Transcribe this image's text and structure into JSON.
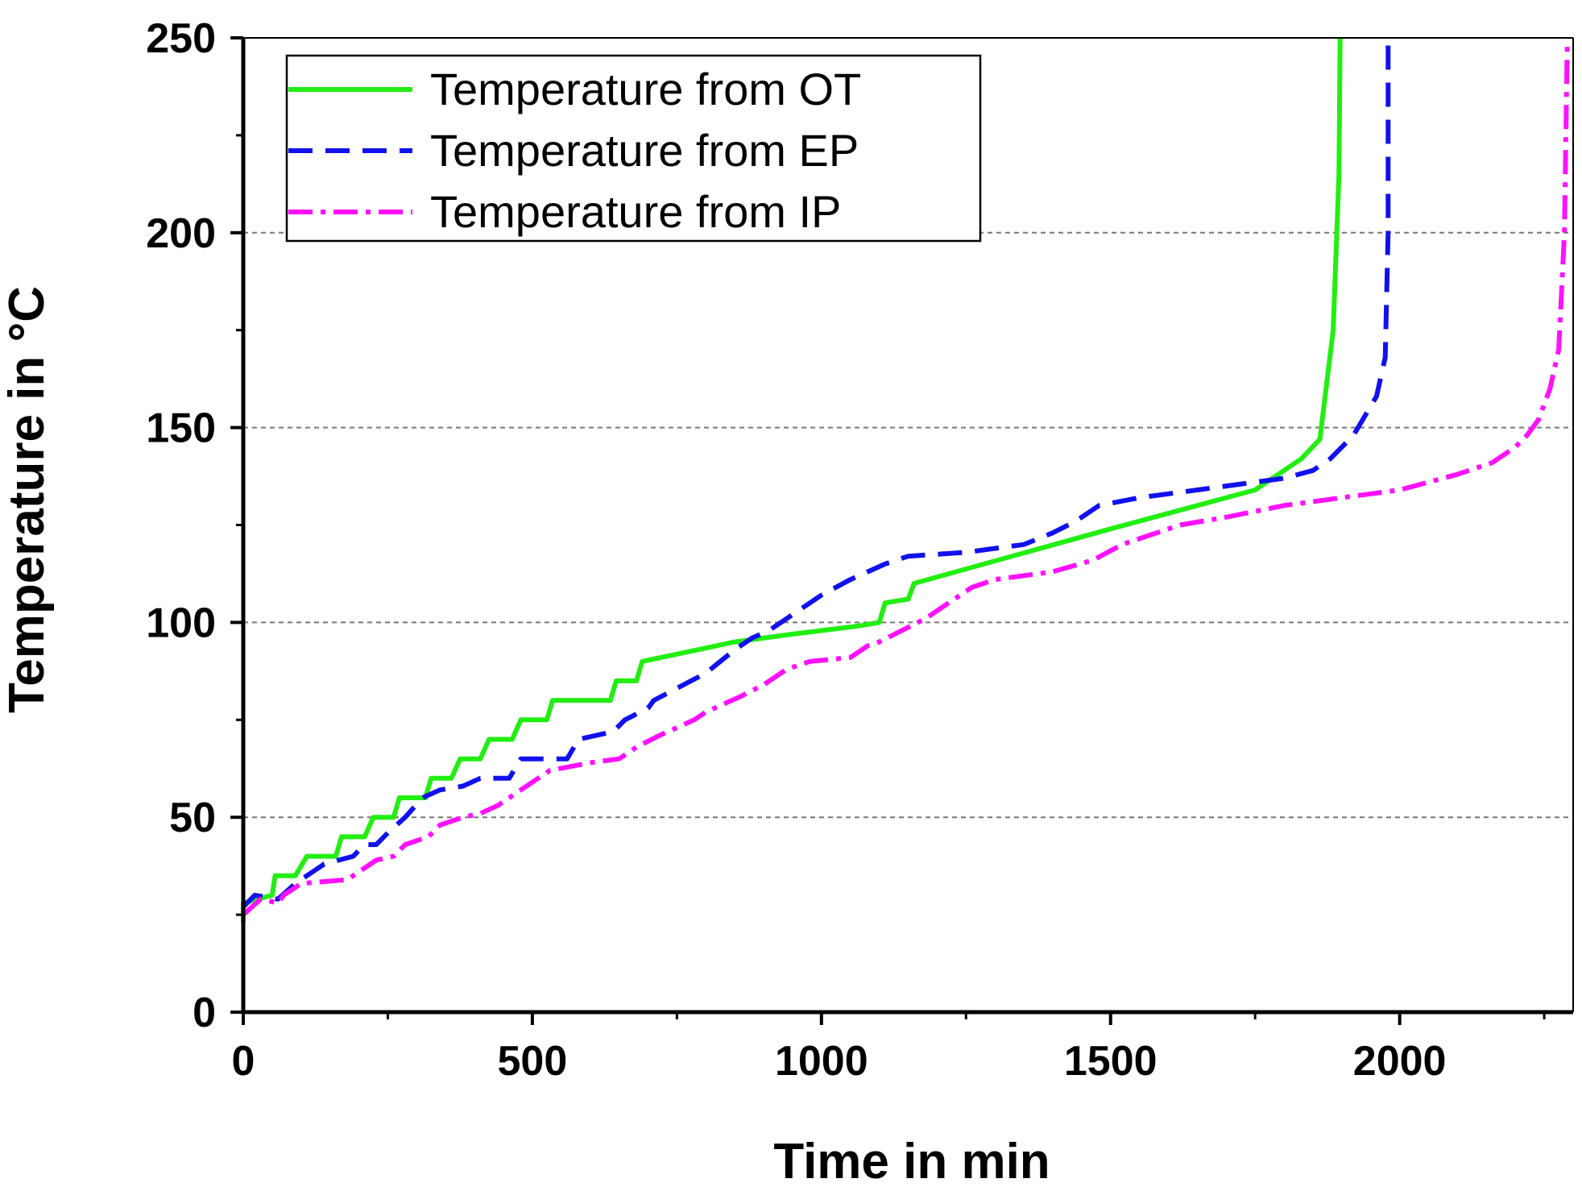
{
  "chart_data": {
    "type": "line",
    "title": "",
    "xlabel": "Time in min",
    "ylabel": "Temperature in °C",
    "xlim": [
      0,
      2300
    ],
    "ylim": [
      0,
      250
    ],
    "x_major_ticks": [
      0,
      500,
      1000,
      1500,
      2000
    ],
    "x_minor_ticks": [
      250,
      750,
      1250,
      1750,
      2250
    ],
    "y_major_ticks": [
      0,
      50,
      100,
      150,
      200,
      250
    ],
    "y_minor_ticks": [
      25,
      75,
      125,
      175,
      225
    ],
    "x_tick_labels": [
      "0",
      "500",
      "1000",
      "1500",
      "2000"
    ],
    "y_tick_labels": [
      "0",
      "50",
      "100",
      "150",
      "200",
      "250"
    ],
    "gridlines_y": [
      50,
      100,
      150,
      200
    ],
    "legend_position": "top-left",
    "series": [
      {
        "name": "Temperature from OT",
        "color": "#22ee11",
        "style": "solid",
        "points": [
          [
            0,
            23
          ],
          [
            0,
            28
          ],
          [
            50,
            30
          ],
          [
            55,
            35
          ],
          [
            90,
            35
          ],
          [
            110,
            40
          ],
          [
            160,
            40
          ],
          [
            170,
            45
          ],
          [
            210,
            45
          ],
          [
            225,
            50
          ],
          [
            260,
            50
          ],
          [
            270,
            55
          ],
          [
            315,
            55
          ],
          [
            325,
            60
          ],
          [
            360,
            60
          ],
          [
            375,
            65
          ],
          [
            410,
            65
          ],
          [
            425,
            70
          ],
          [
            465,
            70
          ],
          [
            480,
            75
          ],
          [
            525,
            75
          ],
          [
            535,
            80
          ],
          [
            635,
            80
          ],
          [
            645,
            85
          ],
          [
            680,
            85
          ],
          [
            690,
            90
          ],
          [
            850,
            95
          ],
          [
            950,
            97
          ],
          [
            1060,
            99
          ],
          [
            1100,
            100
          ],
          [
            1110,
            105
          ],
          [
            1150,
            106
          ],
          [
            1160,
            110
          ],
          [
            1500,
            124
          ],
          [
            1750,
            134
          ],
          [
            1830,
            142
          ],
          [
            1862,
            147
          ],
          [
            1885,
            175
          ],
          [
            1895,
            215
          ],
          [
            1897,
            250
          ]
        ]
      },
      {
        "name": "Temperature from EP",
        "color": "#1111ee",
        "style": "dashed",
        "points": [
          [
            0,
            27
          ],
          [
            20,
            30
          ],
          [
            60,
            29
          ],
          [
            90,
            33
          ],
          [
            140,
            38
          ],
          [
            190,
            40
          ],
          [
            210,
            43
          ],
          [
            230,
            43
          ],
          [
            250,
            46
          ],
          [
            280,
            50
          ],
          [
            310,
            55
          ],
          [
            340,
            57
          ],
          [
            380,
            58
          ],
          [
            410,
            60
          ],
          [
            460,
            60
          ],
          [
            480,
            65
          ],
          [
            560,
            65
          ],
          [
            580,
            70
          ],
          [
            640,
            72
          ],
          [
            660,
            75
          ],
          [
            700,
            78
          ],
          [
            710,
            80
          ],
          [
            800,
            87
          ],
          [
            850,
            93
          ],
          [
            880,
            96
          ],
          [
            910,
            98
          ],
          [
            950,
            102
          ],
          [
            1000,
            107
          ],
          [
            1050,
            111
          ],
          [
            1110,
            115
          ],
          [
            1150,
            117
          ],
          [
            1250,
            118
          ],
          [
            1350,
            120
          ],
          [
            1400,
            123
          ],
          [
            1440,
            126
          ],
          [
            1480,
            130
          ],
          [
            1550,
            132
          ],
          [
            1650,
            134
          ],
          [
            1750,
            136
          ],
          [
            1800,
            137
          ],
          [
            1850,
            139
          ],
          [
            1880,
            142
          ],
          [
            1920,
            148
          ],
          [
            1960,
            158
          ],
          [
            1975,
            168
          ],
          [
            1980,
            200
          ],
          [
            1980,
            250
          ]
        ]
      },
      {
        "name": "Temperature from IP",
        "color": "#ff11ff",
        "style": "dash-dot",
        "points": [
          [
            0,
            25
          ],
          [
            30,
            29
          ],
          [
            60,
            28
          ],
          [
            70,
            30
          ],
          [
            100,
            33
          ],
          [
            180,
            34
          ],
          [
            210,
            37
          ],
          [
            230,
            39
          ],
          [
            260,
            40
          ],
          [
            280,
            43
          ],
          [
            320,
            45
          ],
          [
            340,
            48
          ],
          [
            380,
            50
          ],
          [
            410,
            51
          ],
          [
            440,
            53
          ],
          [
            480,
            57
          ],
          [
            510,
            60
          ],
          [
            530,
            62
          ],
          [
            600,
            64
          ],
          [
            650,
            65
          ],
          [
            680,
            68
          ],
          [
            720,
            71
          ],
          [
            780,
            75
          ],
          [
            800,
            77
          ],
          [
            860,
            81
          ],
          [
            900,
            84
          ],
          [
            940,
            88
          ],
          [
            980,
            90
          ],
          [
            1050,
            91
          ],
          [
            1080,
            94
          ],
          [
            1100,
            95
          ],
          [
            1140,
            98
          ],
          [
            1180,
            101
          ],
          [
            1230,
            106
          ],
          [
            1260,
            109
          ],
          [
            1300,
            111
          ],
          [
            1400,
            113
          ],
          [
            1470,
            116
          ],
          [
            1520,
            120
          ],
          [
            1560,
            122
          ],
          [
            1620,
            125
          ],
          [
            1700,
            127
          ],
          [
            1800,
            130
          ],
          [
            1900,
            132
          ],
          [
            1950,
            133
          ],
          [
            2000,
            134
          ],
          [
            2100,
            138
          ],
          [
            2160,
            141
          ],
          [
            2200,
            145
          ],
          [
            2220,
            148
          ],
          [
            2240,
            152
          ],
          [
            2260,
            160
          ],
          [
            2275,
            170
          ],
          [
            2285,
            200
          ],
          [
            2290,
            250
          ]
        ]
      }
    ]
  }
}
